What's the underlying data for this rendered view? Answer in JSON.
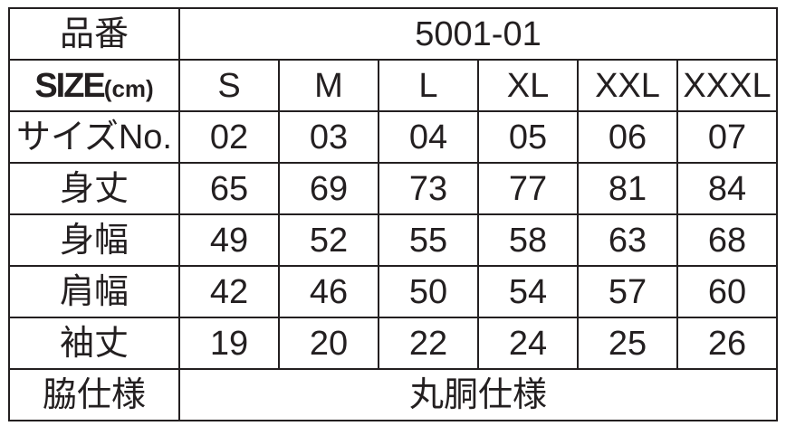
{
  "product_label": "品番",
  "product_code": "5001-01",
  "size_label_main": "SIZE",
  "size_label_unit": "(cm)",
  "sizes": [
    "S",
    "M",
    "L",
    "XL",
    "XXL",
    "XXXL"
  ],
  "rows": [
    {
      "label": "サイズNo.",
      "values": [
        "02",
        "03",
        "04",
        "05",
        "06",
        "07"
      ]
    },
    {
      "label": "身丈",
      "values": [
        "65",
        "69",
        "73",
        "77",
        "81",
        "84"
      ]
    },
    {
      "label": "身幅",
      "values": [
        "49",
        "52",
        "55",
        "58",
        "63",
        "68"
      ]
    },
    {
      "label": "肩幅",
      "values": [
        "42",
        "46",
        "50",
        "54",
        "57",
        "60"
      ]
    },
    {
      "label": "袖丈",
      "values": [
        "19",
        "20",
        "22",
        "24",
        "25",
        "26"
      ]
    }
  ],
  "side_label": "脇仕様",
  "side_value": "丸胴仕様"
}
